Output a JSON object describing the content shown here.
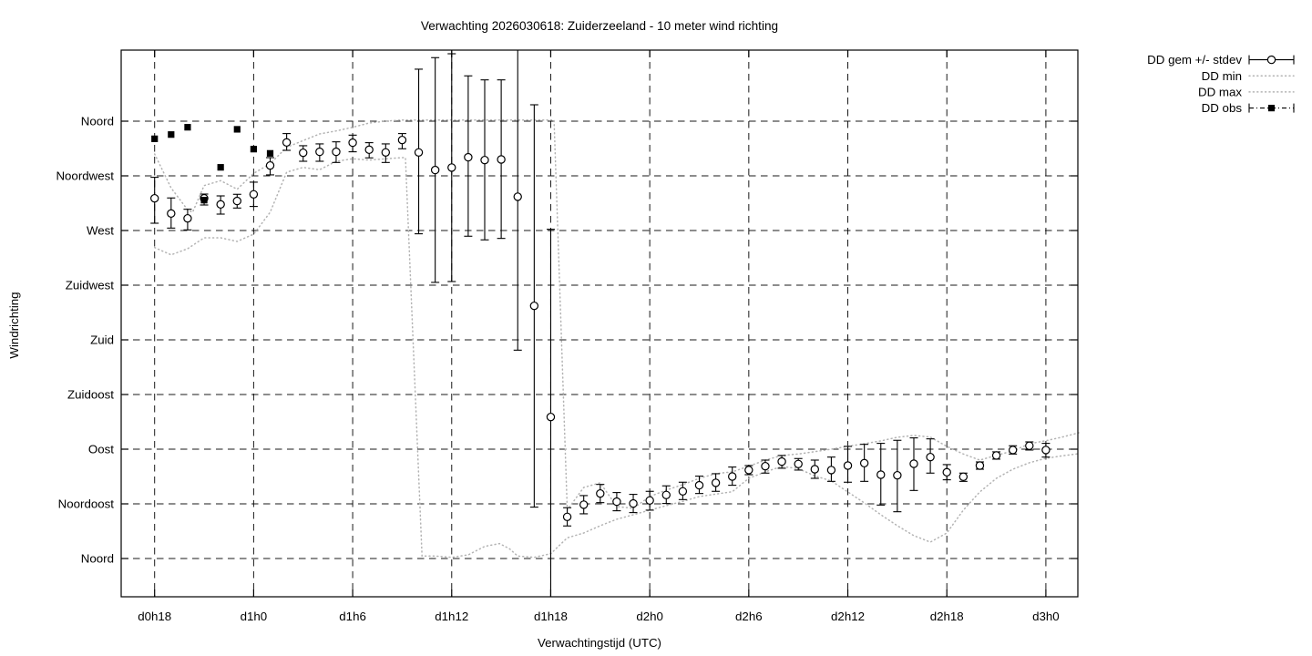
{
  "title": "Verwachting 2026030618: Zuiderzeeland - 10 meter wind richting",
  "x_axis": {
    "label": "Verwachtingstijd (UTC)",
    "ticks": [
      "d0h18",
      "d1h0",
      "d1h6",
      "d1h12",
      "d1h18",
      "d2h0",
      "d2h6",
      "d2h12",
      "d2h18",
      "d3h0"
    ],
    "tick_hours": [
      18,
      24,
      30,
      36,
      42,
      48,
      54,
      60,
      66,
      72
    ],
    "range_hours": [
      16,
      74
    ]
  },
  "y_axis": {
    "label": "Windrichting",
    "ticks": [
      "Noord",
      "Noordwest",
      "West",
      "Zuidwest",
      "Zuid",
      "Zuidoost",
      "Oost",
      "Noordoost",
      "Noord"
    ],
    "tick_degrees": [
      360,
      315,
      270,
      225,
      180,
      135,
      90,
      45,
      0
    ],
    "range_degrees": [
      -31.5,
      418.5
    ]
  },
  "legend": [
    {
      "label": "DD gem +/- stdev",
      "style": "errorbar-circle"
    },
    {
      "label": "DD min",
      "style": "dotted"
    },
    {
      "label": "DD max",
      "style": "dotted"
    },
    {
      "label": "DD obs",
      "style": "dashdot-square"
    }
  ],
  "colors": {
    "foreground": "#000000",
    "minmax_dotted": "#b3b3b3",
    "background": "#ffffff"
  },
  "chart_data": {
    "type": "line",
    "title": "Verwachting 2026030618: Zuiderzeeland - 10 meter wind richting",
    "xlabel": "Verwachtingstijd (UTC)",
    "ylabel": "Windrichting",
    "x_unit": "forecast hour (d0h18 = 18 ... d3h0 = 72)",
    "y_unit": "wind direction degrees (0/360 = Noord, 90 = Oost, 180 = Zuid, 270 = West)",
    "xlim": [
      16,
      74
    ],
    "ylim": [
      -31.5,
      418.5
    ],
    "grid": true,
    "legend_position": "outside-top-right",
    "series": [
      {
        "name": "DD gem +/- stdev",
        "style": "errorbar-circle",
        "x": [
          18,
          19,
          20,
          21,
          22,
          23,
          24,
          25,
          26,
          27,
          28,
          29,
          30,
          31,
          32,
          33,
          34,
          35,
          36,
          37,
          38,
          39,
          40,
          41,
          42,
          43,
          44,
          45,
          46,
          47,
          48,
          49,
          50,
          51,
          52,
          53,
          54,
          55,
          56,
          57,
          58,
          59,
          60,
          61,
          62,
          63,
          64,
          65,
          66,
          67,
          68,
          69,
          70,
          71,
          72
        ],
        "y": [
          296.5,
          284,
          280,
          296.5,
          291.5,
          294.3,
          299.8,
          323.5,
          342.5,
          334,
          334.8,
          334.8,
          342.3,
          336.5,
          334.3,
          344.5,
          334.3,
          319.8,
          321.8,
          330.3,
          328,
          328.5,
          297.8,
          208,
          116.5,
          34.3,
          44.3,
          53.5,
          46.8,
          45.3,
          47.8,
          52.3,
          55.3,
          60.3,
          62.3,
          67.5,
          72.8,
          76,
          79.8,
          77.8,
          73.5,
          72.8,
          76.5,
          78.5,
          69,
          68.5,
          78,
          83.5,
          71,
          67.3,
          76.5,
          84.8,
          89.3,
          92.8,
          89.3
        ],
        "err_low": [
          276,
          272,
          270.5,
          291,
          283.5,
          288.5,
          289.8,
          315.8,
          336,
          327,
          327,
          326,
          334.8,
          329.8,
          326,
          337.3,
          267.3,
          227.3,
          228,
          265.3,
          262.3,
          263.5,
          171.5,
          42.3,
          -31.5,
          26.8,
          36.8,
          46,
          39.3,
          37.8,
          39.8,
          45.3,
          48.5,
          53.5,
          55.3,
          60.3,
          69,
          70.3,
          74.3,
          72.8,
          66,
          63.5,
          62.8,
          63.5,
          44,
          38.5,
          56,
          70.3,
          64.8,
          63.5,
          73.5,
          81.8,
          86,
          89.3,
          83.5
        ],
        "err_high": [
          313.8,
          296.8,
          287.5,
          300,
          298.5,
          299.8,
          309.8,
          330,
          349.8,
          339.8,
          341.3,
          343,
          348.5,
          342.3,
          341.3,
          349.8,
          402.8,
          412.3,
          415.5,
          397.3,
          394,
          394,
          418.5,
          373.5,
          271,
          41.8,
          51.8,
          61,
          54.3,
          52.8,
          55.3,
          59.8,
          62.8,
          67.8,
          69.8,
          75.3,
          76.5,
          81,
          84.8,
          82.3,
          81,
          83.5,
          92.3,
          94,
          94.8,
          97.3,
          99.3,
          98.5,
          77.3,
          70.3,
          79.5,
          87.8,
          92.8,
          96,
          94.8
        ]
      },
      {
        "name": "DD min",
        "style": "dotted",
        "points": [
          [
            18,
            256
          ],
          [
            19,
            250
          ],
          [
            20,
            255
          ],
          [
            21,
            264
          ],
          [
            22,
            264
          ],
          [
            23,
            261
          ],
          [
            24,
            267
          ],
          [
            25,
            285
          ],
          [
            26,
            318
          ],
          [
            27,
            322
          ],
          [
            28,
            320
          ],
          [
            29,
            327
          ],
          [
            30,
            329
          ],
          [
            31,
            328
          ],
          [
            32,
            329
          ],
          [
            33,
            330
          ],
          [
            33.2,
            330
          ],
          [
            34.2,
            2
          ],
          [
            35,
            2
          ],
          [
            36,
            1
          ],
          [
            37,
            3
          ],
          [
            38,
            10
          ],
          [
            38.9,
            12.3
          ],
          [
            39.5,
            8
          ],
          [
            40,
            2
          ],
          [
            41,
            1
          ],
          [
            42,
            4
          ],
          [
            43,
            17
          ],
          [
            44,
            21
          ],
          [
            45,
            27
          ],
          [
            46,
            32.3
          ],
          [
            47,
            36
          ],
          [
            48,
            39.8
          ],
          [
            49,
            43.5
          ],
          [
            50,
            47
          ],
          [
            51,
            51
          ],
          [
            52,
            53
          ],
          [
            53,
            55
          ],
          [
            54,
            66
          ],
          [
            55,
            71.3
          ],
          [
            56,
            75.8
          ],
          [
            57,
            74
          ],
          [
            58,
            68
          ],
          [
            59,
            63.8
          ],
          [
            60,
            54.8
          ],
          [
            61,
            45.8
          ],
          [
            62,
            36
          ],
          [
            63,
            27
          ],
          [
            64,
            18.8
          ],
          [
            65,
            13.5
          ],
          [
            66,
            21
          ],
          [
            67,
            39.8
          ],
          [
            68,
            54.8
          ],
          [
            69,
            66
          ],
          [
            70,
            73.5
          ],
          [
            71,
            78.8
          ],
          [
            72,
            82.5
          ],
          [
            73,
            84.5
          ],
          [
            74,
            86.3
          ]
        ]
      },
      {
        "name": "DD max",
        "style": "dotted",
        "points": [
          [
            18,
            333
          ],
          [
            19,
            305
          ],
          [
            20,
            287
          ],
          [
            20.3,
            285
          ],
          [
            21,
            307
          ],
          [
            22,
            311
          ],
          [
            23,
            304
          ],
          [
            24,
            317
          ],
          [
            25,
            325
          ],
          [
            26,
            338.5
          ],
          [
            27,
            344
          ],
          [
            28,
            349.5
          ],
          [
            29,
            352
          ],
          [
            30,
            355
          ],
          [
            31,
            358.5
          ],
          [
            32,
            360
          ],
          [
            33,
            361
          ],
          [
            36,
            361
          ],
          [
            39,
            361
          ],
          [
            42.2,
            361
          ],
          [
            43,
            40
          ],
          [
            44,
            58.5
          ],
          [
            45,
            62.3
          ],
          [
            46,
            42.8
          ],
          [
            47,
            41.3
          ],
          [
            48,
            51
          ],
          [
            49,
            56.3
          ],
          [
            50,
            60.8
          ],
          [
            51,
            66
          ],
          [
            52,
            69.8
          ],
          [
            53,
            71.3
          ],
          [
            54,
            76
          ],
          [
            55,
            81
          ],
          [
            56,
            84.8
          ],
          [
            57,
            86
          ],
          [
            58,
            88
          ],
          [
            59,
            90
          ],
          [
            60,
            92.3
          ],
          [
            61,
            94.5
          ],
          [
            62,
            96.8
          ],
          [
            63,
            99.8
          ],
          [
            64,
            101.3
          ],
          [
            65,
            100
          ],
          [
            66,
            92.3
          ],
          [
            67,
            86
          ],
          [
            68,
            81
          ],
          [
            69,
            85
          ],
          [
            70,
            88.5
          ],
          [
            71,
            94.5
          ],
          [
            72,
            97
          ],
          [
            73,
            100
          ],
          [
            74,
            103.5
          ]
        ]
      },
      {
        "name": "DD obs",
        "style": "filled-square",
        "x": [
          18,
          19,
          20,
          21,
          22,
          23,
          24,
          25
        ],
        "y": [
          345.5,
          349,
          355,
          295,
          322,
          353.3,
          337,
          333.5
        ]
      }
    ]
  }
}
